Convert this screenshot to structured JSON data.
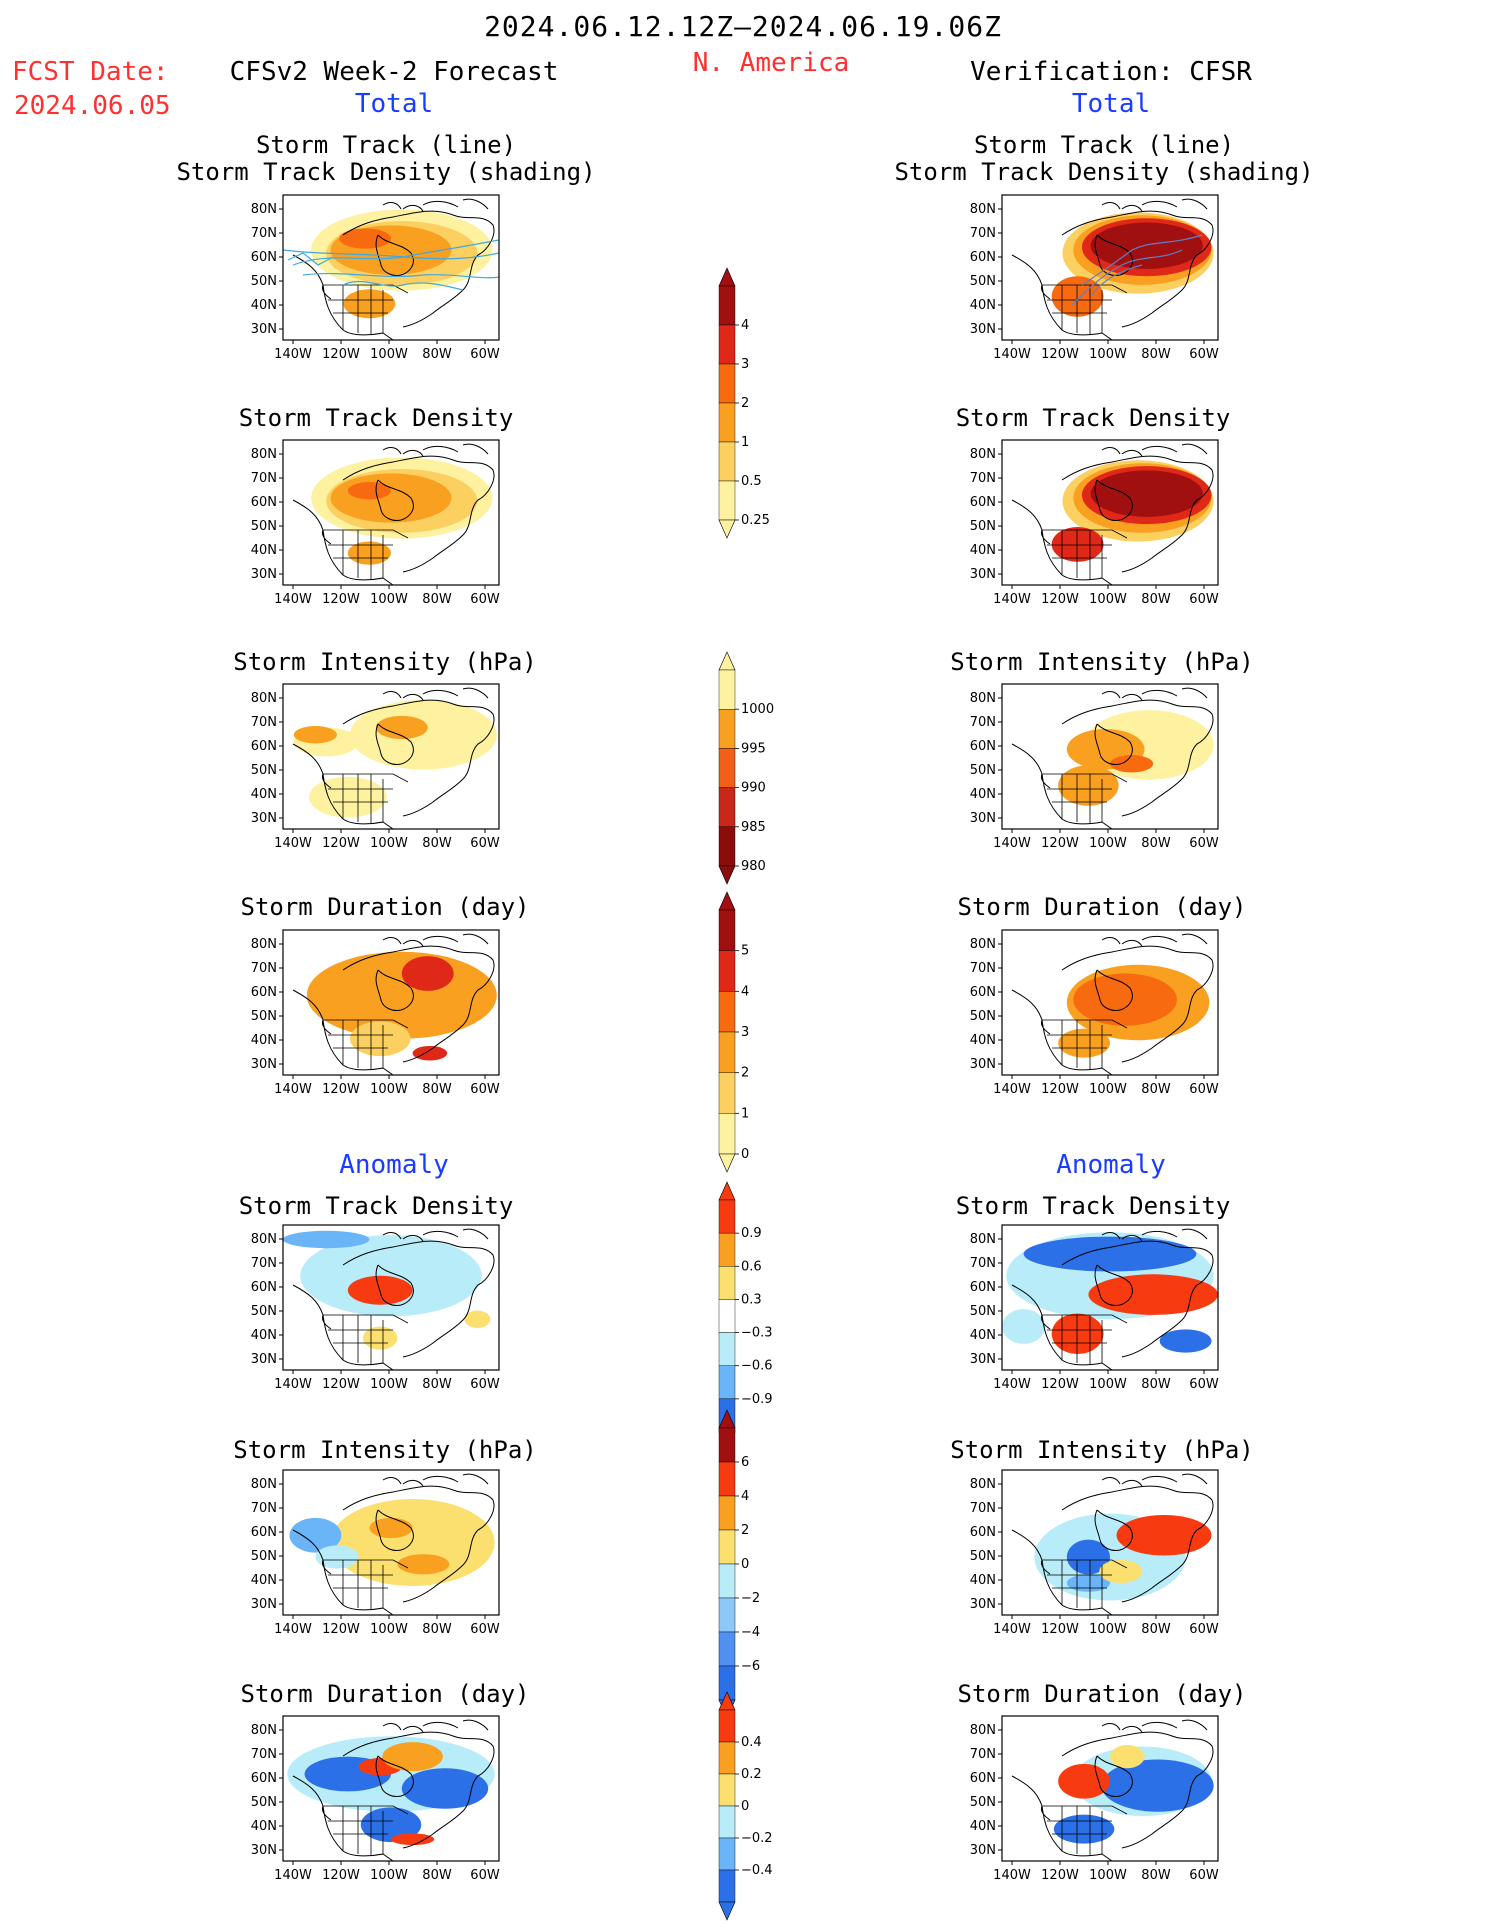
{
  "header": {
    "period": "2024.06.12.12Z–2024.06.19.06Z",
    "region": "N. America",
    "fcst_label": "FCST Date:",
    "fcst_date": "2024.06.05",
    "left_title": "CFSv2 Week-2 Forecast",
    "right_title": "Verification: CFSR",
    "total_label": "Total",
    "anomaly_label": "Anomaly"
  },
  "axes": {
    "lat_labels": [
      "80N",
      "70N",
      "60N",
      "50N",
      "40N",
      "30N"
    ],
    "lon_labels": [
      "140W",
      "120W",
      "100W",
      "80W",
      "60W"
    ]
  },
  "panels": [
    {
      "id": "track",
      "title1": "Storm Track (line)",
      "title2": "Storm Track Density (shading)"
    },
    {
      "id": "density",
      "title1": "Storm Track Density"
    },
    {
      "id": "intensity",
      "title1": "Storm Intensity (hPa)"
    },
    {
      "id": "duration",
      "title1": "Storm Duration (day)"
    },
    {
      "id": "a_density",
      "title1": "Storm Track Density"
    },
    {
      "id": "a_intensity",
      "title1": "Storm Intensity (hPa)"
    },
    {
      "id": "a_duration",
      "title1": "Storm Duration (day)"
    }
  ],
  "colorbars": [
    {
      "labels": [
        "4",
        "3",
        "2",
        "1",
        "0.5",
        "0.25"
      ],
      "colors": [
        "#a01010",
        "#e02818",
        "#f86a10",
        "#faa020",
        "#fbd060",
        "#fef2a0"
      ]
    },
    {
      "labels": [
        "1000",
        "995",
        "990",
        "985",
        "980"
      ],
      "colors": [
        "#fef2a0",
        "#f8a020",
        "#f06018",
        "#c82818",
        "#8c0c0c"
      ]
    },
    {
      "labels": [
        "5",
        "4",
        "3",
        "2",
        "1",
        "0"
      ],
      "colors": [
        "#a01010",
        "#e02818",
        "#f86a10",
        "#faa020",
        "#fbd060",
        "#fef2a0"
      ]
    },
    {
      "labels": [
        "0.9",
        "0.6",
        "0.3",
        "−0.3",
        "−0.6",
        "−0.9"
      ],
      "colors": [
        "#f83a10",
        "#faa020",
        "#fbe070",
        "#ffffff",
        "#b8ecf8",
        "#6ab4f8",
        "#2c70e8"
      ]
    },
    {
      "labels": [
        "6",
        "4",
        "2",
        "0",
        "−2",
        "−4",
        "−6"
      ],
      "colors": [
        "#a01010",
        "#f83a10",
        "#faa020",
        "#fbe070",
        "#b8ecf8",
        "#8cc8f8",
        "#5090f0",
        "#2c70e8"
      ]
    },
    {
      "labels": [
        "0.4",
        "0.2",
        "0",
        "−0.2",
        "−0.4"
      ],
      "colors": [
        "#f83a10",
        "#faa020",
        "#fbe070",
        "#b8ecf8",
        "#6ab4f8",
        "#2c70e8"
      ]
    }
  ]
}
